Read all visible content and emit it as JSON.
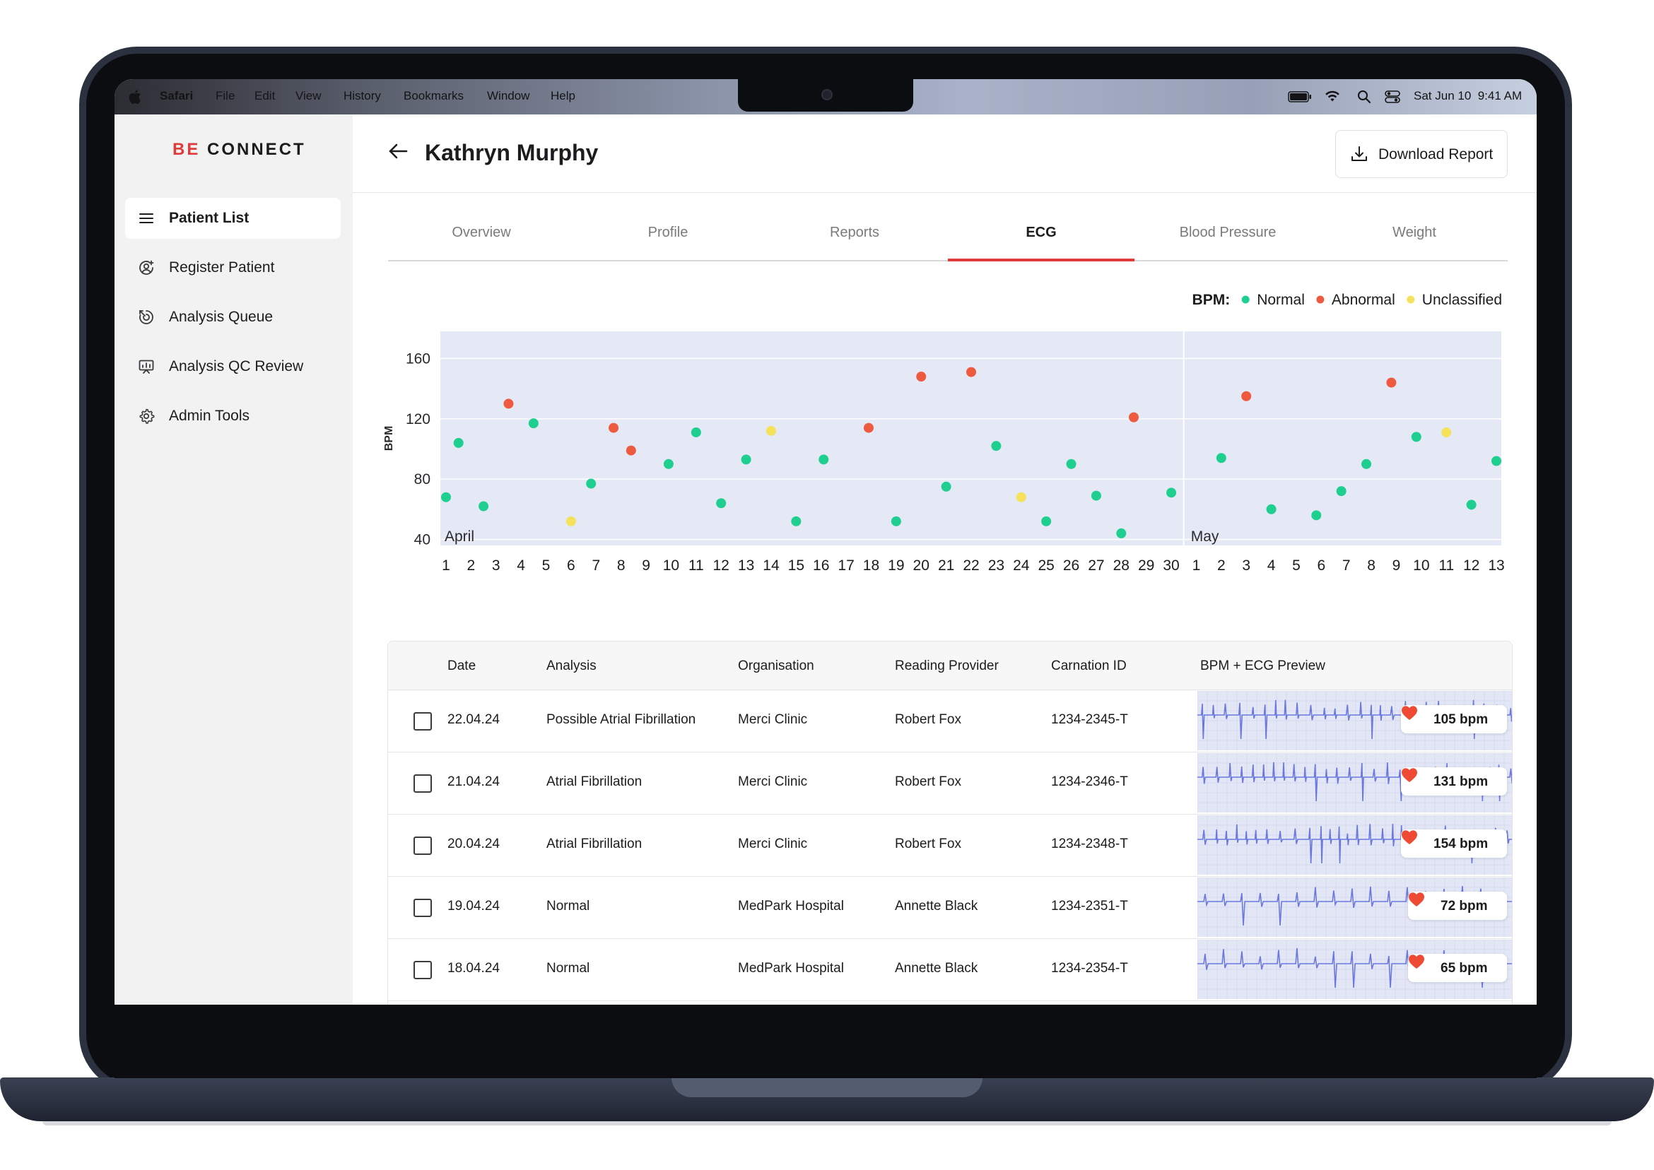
{
  "menubar": {
    "app": "Safari",
    "items": [
      "File",
      "Edit",
      "View",
      "History",
      "Bookmarks",
      "Window",
      "Help"
    ],
    "datetime": "Sat Jun 10  9:41 AM"
  },
  "sidebar": {
    "logo_be": "BE",
    "logo_connect": "CONNECT",
    "items": [
      {
        "label": "Patient List",
        "icon": "menu-icon",
        "active": true
      },
      {
        "label": "Register Patient",
        "icon": "user-add-icon",
        "active": false
      },
      {
        "label": "Analysis Queue",
        "icon": "queue-icon",
        "active": false
      },
      {
        "label": "Analysis QC Review",
        "icon": "qc-review-icon",
        "active": false
      },
      {
        "label": "Admin Tools",
        "icon": "gear-icon",
        "active": false
      }
    ]
  },
  "header": {
    "patient_name": "Kathryn Murphy",
    "download_label": "Download Report"
  },
  "tabs": [
    {
      "label": "Overview",
      "active": false
    },
    {
      "label": "Profile",
      "active": false
    },
    {
      "label": "Reports",
      "active": false
    },
    {
      "label": "ECG",
      "active": true
    },
    {
      "label": "Blood Pressure",
      "active": false
    },
    {
      "label": "Weight",
      "active": false
    }
  ],
  "chart_data": {
    "type": "scatter",
    "ylabel": "BPM",
    "ylim": [
      36,
      178
    ],
    "yticks": [
      40,
      80,
      120,
      160
    ],
    "legend": {
      "title": "BPM:",
      "placement": "top-right",
      "entries": [
        {
          "name": "Normal",
          "color": "#1ecf8f"
        },
        {
          "name": "Abnormal",
          "color": "#ee5a3f"
        },
        {
          "name": "Unclassified",
          "color": "#f5e25a"
        }
      ]
    },
    "months": [
      "April",
      "May"
    ],
    "x_labels": [
      "1",
      "2",
      "3",
      "4",
      "5",
      "6",
      "7",
      "8",
      "9",
      "10",
      "11",
      "12",
      "13",
      "14",
      "15",
      "16",
      "17",
      "18",
      "19",
      "20",
      "21",
      "22",
      "23",
      "24",
      "25",
      "26",
      "27",
      "28",
      "29",
      "30",
      "1",
      "2",
      "3",
      "4",
      "5",
      "6",
      "7",
      "8",
      "9",
      "10",
      "11",
      "12",
      "13"
    ],
    "points": [
      {
        "x": 1,
        "y": 68,
        "status": "Normal"
      },
      {
        "x": 1.5,
        "y": 104,
        "status": "Normal"
      },
      {
        "x": 2.5,
        "y": 62,
        "status": "Normal"
      },
      {
        "x": 3.5,
        "y": 130,
        "status": "Abnormal"
      },
      {
        "x": 4.5,
        "y": 117,
        "status": "Normal"
      },
      {
        "x": 6,
        "y": 52,
        "status": "Unclassified"
      },
      {
        "x": 6.8,
        "y": 77,
        "status": "Normal"
      },
      {
        "x": 7.7,
        "y": 114,
        "status": "Abnormal"
      },
      {
        "x": 8.4,
        "y": 99,
        "status": "Abnormal"
      },
      {
        "x": 9.9,
        "y": 90,
        "status": "Normal"
      },
      {
        "x": 11,
        "y": 111,
        "status": "Normal"
      },
      {
        "x": 12,
        "y": 64,
        "status": "Normal"
      },
      {
        "x": 13,
        "y": 93,
        "status": "Normal"
      },
      {
        "x": 14,
        "y": 112,
        "status": "Unclassified"
      },
      {
        "x": 15,
        "y": 52,
        "status": "Normal"
      },
      {
        "x": 16.1,
        "y": 93,
        "status": "Normal"
      },
      {
        "x": 17.9,
        "y": 114,
        "status": "Abnormal"
      },
      {
        "x": 19,
        "y": 52,
        "status": "Normal"
      },
      {
        "x": 20,
        "y": 148,
        "status": "Abnormal"
      },
      {
        "x": 21,
        "y": 75,
        "status": "Normal"
      },
      {
        "x": 22,
        "y": 151,
        "status": "Abnormal"
      },
      {
        "x": 23,
        "y": 102,
        "status": "Normal"
      },
      {
        "x": 24,
        "y": 68,
        "status": "Unclassified"
      },
      {
        "x": 25,
        "y": 52,
        "status": "Normal"
      },
      {
        "x": 26,
        "y": 90,
        "status": "Normal"
      },
      {
        "x": 27,
        "y": 69,
        "status": "Normal"
      },
      {
        "x": 28,
        "y": 44,
        "status": "Normal"
      },
      {
        "x": 28.5,
        "y": 121,
        "status": "Abnormal"
      },
      {
        "x": 30,
        "y": 71,
        "status": "Normal"
      },
      {
        "x": 32,
        "y": 94,
        "status": "Normal"
      },
      {
        "x": 33,
        "y": 135,
        "status": "Abnormal"
      },
      {
        "x": 34,
        "y": 60,
        "status": "Normal"
      },
      {
        "x": 35.8,
        "y": 56,
        "status": "Normal"
      },
      {
        "x": 36.8,
        "y": 72,
        "status": "Normal"
      },
      {
        "x": 37.8,
        "y": 90,
        "status": "Normal"
      },
      {
        "x": 38.8,
        "y": 144,
        "status": "Abnormal"
      },
      {
        "x": 39.8,
        "y": 108,
        "status": "Normal"
      },
      {
        "x": 41,
        "y": 111,
        "status": "Unclassified"
      },
      {
        "x": 42,
        "y": 63,
        "status": "Normal"
      },
      {
        "x": 43,
        "y": 92,
        "status": "Normal"
      }
    ]
  },
  "table": {
    "headers": [
      "Date",
      "Analysis",
      "Organisation",
      "Reading Provider",
      "Carnation ID",
      "BPM + ECG Preview"
    ],
    "rows": [
      {
        "date": "22.04.24",
        "analysis": "Possible Atrial Fibrillation",
        "organisation": "Merci Clinic",
        "provider": "Robert Fox",
        "carnation_id": "1234-2345-T",
        "bpm": "105 bpm"
      },
      {
        "date": "21.04.24",
        "analysis": "Atrial Fibrillation",
        "organisation": "Merci Clinic",
        "provider": "Robert Fox",
        "carnation_id": "1234-2346-T",
        "bpm": "131 bpm"
      },
      {
        "date": "20.04.24",
        "analysis": "Atrial Fibrillation",
        "organisation": "Merci Clinic",
        "provider": "Robert Fox",
        "carnation_id": "1234-2348-T",
        "bpm": "154 bpm"
      },
      {
        "date": "19.04.24",
        "analysis": "Normal",
        "organisation": "MedPark Hospital",
        "provider": "Annette Black",
        "carnation_id": "1234-2351-T",
        "bpm": "72 bpm"
      },
      {
        "date": "18.04.24",
        "analysis": "Normal",
        "organisation": "MedPark Hospital",
        "provider": "Annette Black",
        "carnation_id": "1234-2354-T",
        "bpm": "65 bpm"
      }
    ]
  },
  "colors": {
    "accent": "#e03b3b",
    "heart": "#ee4a34",
    "ecg_line": "#6a78e0",
    "chart_bg": "#e4e9f5"
  }
}
